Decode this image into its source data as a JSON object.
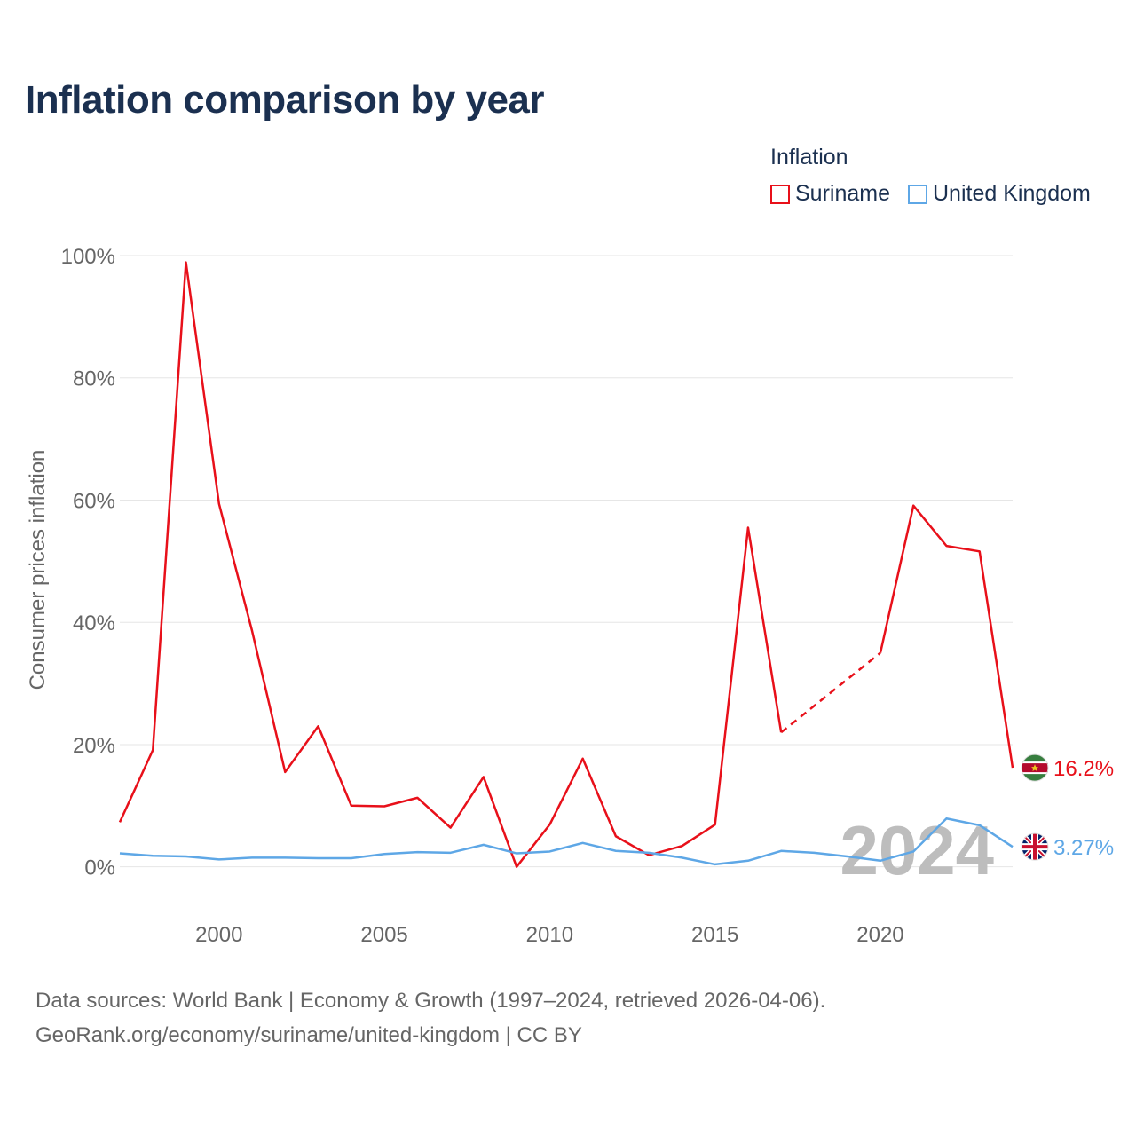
{
  "chart_data": {
    "type": "line",
    "title": "Inflation comparison by year",
    "legend_title": "Inflation",
    "ylabel": "Consumer prices inflation",
    "xlabel": "",
    "ylim": [
      -6,
      100
    ],
    "xlim": [
      1997,
      2024
    ],
    "yticks": [
      0,
      20,
      40,
      60,
      80,
      100
    ],
    "ytick_labels": [
      "0%",
      "20%",
      "40%",
      "60%",
      "80%",
      "100%"
    ],
    "xticks": [
      2000,
      2005,
      2010,
      2015,
      2020
    ],
    "xtick_labels": [
      "2000",
      "2005",
      "2010",
      "2015",
      "2020"
    ],
    "grid": true,
    "year_watermark": "2024",
    "x": [
      1997,
      1998,
      1999,
      2000,
      2001,
      2002,
      2003,
      2004,
      2005,
      2006,
      2007,
      2008,
      2009,
      2010,
      2011,
      2012,
      2013,
      2014,
      2015,
      2016,
      2017,
      2018,
      2019,
      2020,
      2021,
      2022,
      2023,
      2024
    ],
    "series": [
      {
        "name": "Suriname",
        "color": "#e8101a",
        "values": [
          7.3,
          19.1,
          98.9,
          59.4,
          38.6,
          15.5,
          23.0,
          10.0,
          9.9,
          11.3,
          6.4,
          14.7,
          0.0,
          6.9,
          17.7,
          5.0,
          1.9,
          3.4,
          6.9,
          55.5,
          22.0,
          null,
          null,
          35.0,
          59.1,
          52.5,
          51.6,
          16.2
        ],
        "end_label": "16.2%",
        "flag_icon": "suriname-flag-icon"
      },
      {
        "name": "United Kingdom",
        "color": "#5ea7e6",
        "values": [
          2.2,
          1.8,
          1.7,
          1.2,
          1.5,
          1.5,
          1.4,
          1.4,
          2.1,
          2.4,
          2.3,
          3.6,
          2.2,
          2.5,
          3.9,
          2.6,
          2.3,
          1.5,
          0.4,
          1.0,
          2.6,
          2.3,
          1.7,
          1.0,
          2.5,
          7.9,
          6.8,
          3.27
        ],
        "end_label": "3.27%",
        "flag_icon": "uk-flag-icon"
      }
    ]
  },
  "source": {
    "line1": "Data sources: World Bank | Economy & Growth (1997–2024, retrieved 2026-04-06).",
    "line2": "GeoRank.org/economy/suriname/united-kingdom | CC BY"
  }
}
